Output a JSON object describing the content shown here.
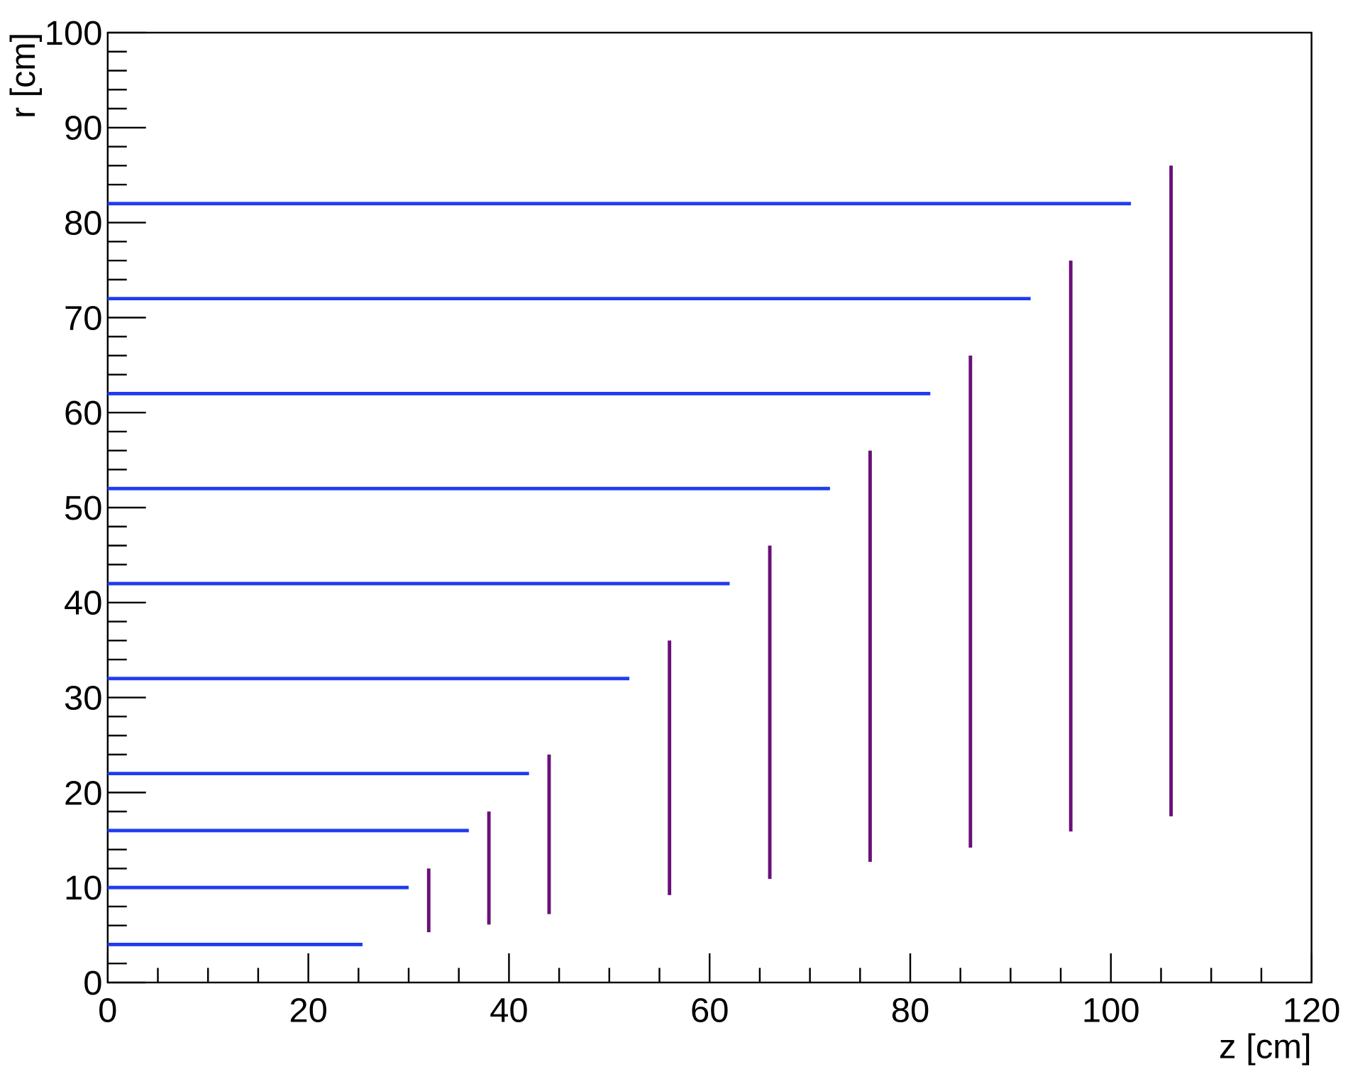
{
  "chart_data": {
    "type": "segments",
    "x_label": "z [cm]",
    "y_label": "r [cm]",
    "xlim": [
      0,
      120
    ],
    "xticks": [
      0,
      20,
      40,
      60,
      80,
      100,
      120
    ],
    "ylim": [
      0,
      100
    ],
    "yticks": [
      0,
      10,
      20,
      30,
      40,
      50,
      60,
      70,
      80,
      90,
      100
    ],
    "barrel": {
      "color": "#1f3cf0",
      "r": [
        4,
        10,
        16,
        22,
        32,
        42,
        52,
        62,
        72,
        82
      ],
      "z_min": [
        0,
        0,
        0,
        0,
        0,
        0,
        0,
        0,
        0,
        0
      ],
      "z_max": [
        25.4,
        30,
        36,
        42,
        52,
        62,
        72,
        82,
        92,
        102
      ]
    },
    "disks": {
      "color": "#6b0f7a",
      "z": [
        32,
        38,
        44,
        56,
        66,
        76,
        86,
        96,
        106
      ],
      "r_min": [
        5.3,
        6.1,
        7.2,
        9.2,
        10.9,
        12.7,
        14.2,
        15.9,
        17.5
      ],
      "r_max": [
        12,
        18,
        24,
        36,
        46,
        56,
        66,
        76,
        86
      ]
    }
  }
}
